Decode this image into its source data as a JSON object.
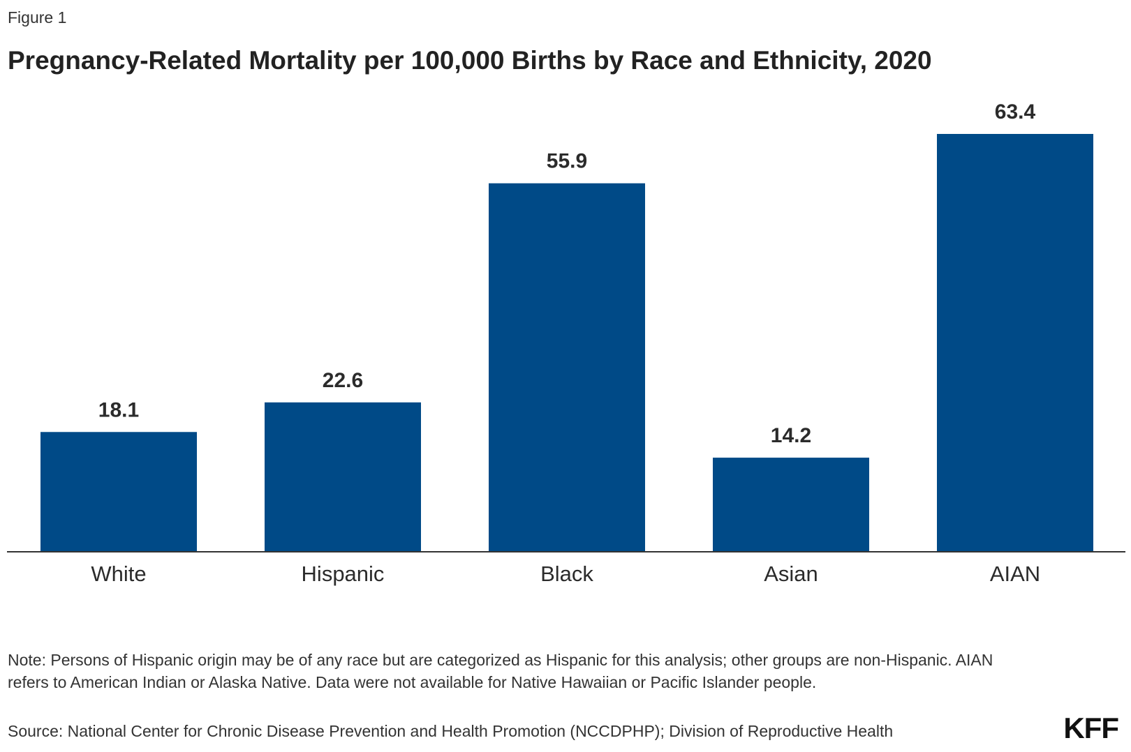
{
  "figure_label": "Figure 1",
  "chart_data": {
    "type": "bar",
    "title": "Pregnancy-Related Mortality per 100,000 Births by Race and Ethnicity, 2020",
    "categories": [
      "White",
      "Hispanic",
      "Black",
      "Asian",
      "AIAN"
    ],
    "values": [
      18.1,
      22.6,
      55.9,
      14.2,
      63.4
    ],
    "value_labels": [
      "18.1",
      "22.6",
      "55.9",
      "14.2",
      "63.4"
    ],
    "xlabel": "",
    "ylabel": "",
    "ylim": [
      0,
      63.4
    ],
    "grid": false,
    "bar_color": "#004a87"
  },
  "note": "Note: Persons of Hispanic origin may be of any race but are categorized as Hispanic for this analysis; other groups are non-Hispanic. AIAN refers to American Indian or Alaska Native. Data were not available for Native Hawaiian or Pacific Islander people.",
  "source": "Source: National Center for Chronic Disease Prevention and Health Promotion (NCCDPHP); Division of Reproductive Health",
  "logo_text": "KFF"
}
